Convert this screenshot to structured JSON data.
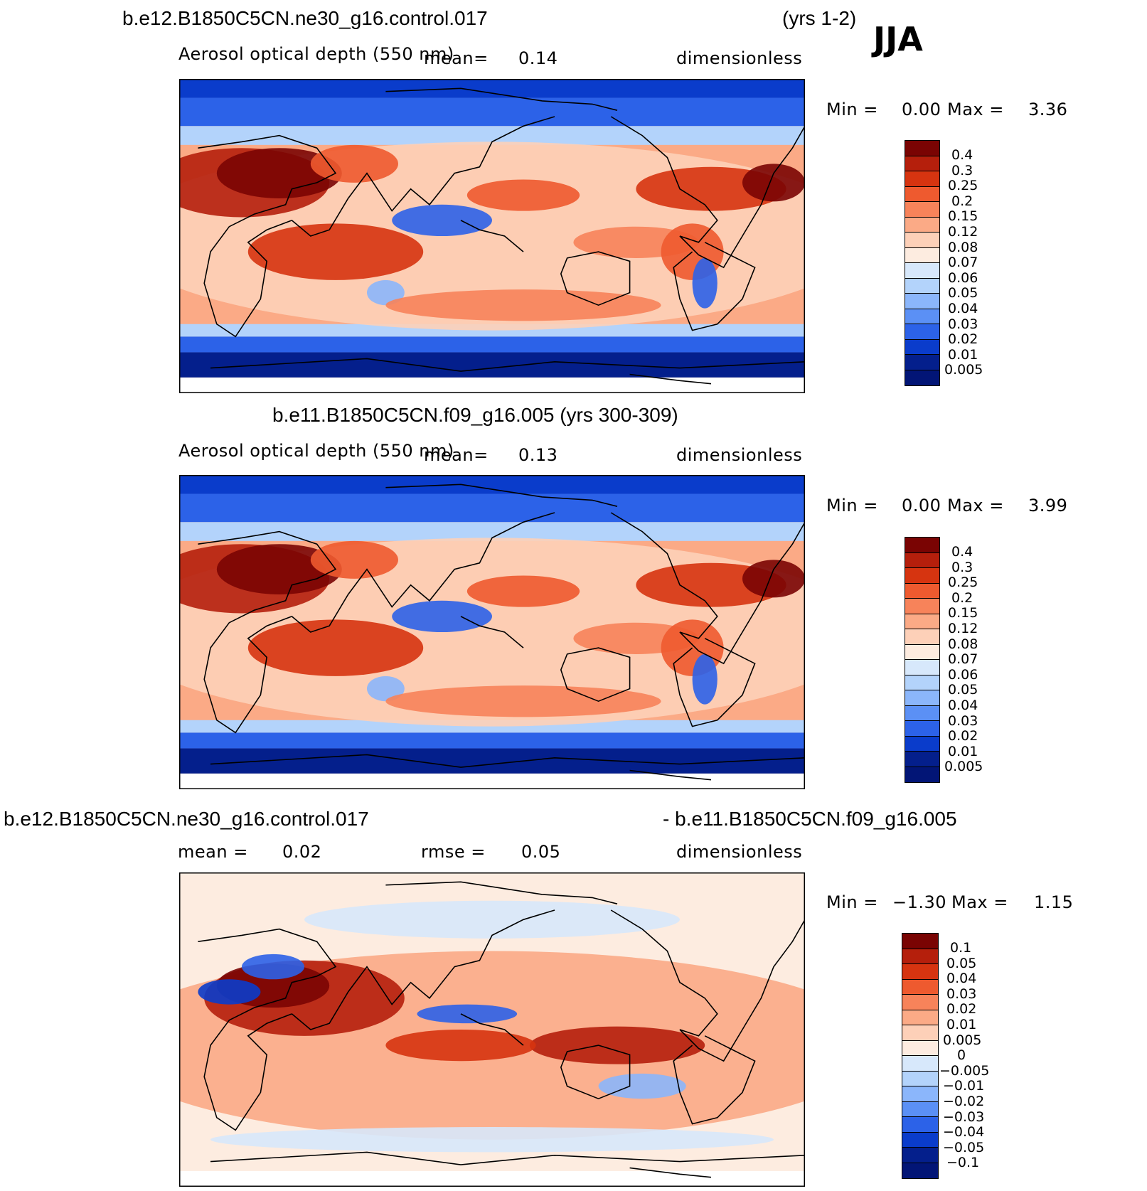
{
  "season": "JJA",
  "panel1": {
    "case_title": "b.e12.B1850C5CN.ne30_g16.control.017",
    "years": "(yrs 1-2)",
    "variable": "Aerosol optical depth (550 nm)",
    "mean_label": "mean=",
    "mean_value": "0.14",
    "units": "dimensionless",
    "min_label": "Min =",
    "min_value": "0.00",
    "max_label": "Max =",
    "max_value": "3.36"
  },
  "panel2": {
    "case_title": "b.e11.B1850C5CN.f09_g16.005 (yrs 300-309)",
    "variable": "Aerosol optical depth (550 nm)",
    "mean_label": "mean=",
    "mean_value": "0.13",
    "units": "dimensionless",
    "min_label": "Min =",
    "min_value": "0.00",
    "max_label": "Max =",
    "max_value": "3.99"
  },
  "panel3": {
    "case_title_left": "b.e12.B1850C5CN.ne30_g16.control.017",
    "case_title_right": "- b.e11.B1850C5CN.f09_g16.005",
    "mean_label": "mean =",
    "mean_value": "0.02",
    "rmse_label": "rmse =",
    "rmse_value": "0.05",
    "units": "dimensionless",
    "min_label": "Min =",
    "min_value": "−1.30",
    "max_label": "Max =",
    "max_value": "1.15"
  },
  "chart_data": [
    {
      "type": "heatmap",
      "title": "b.e12.B1850C5CN.ne30_g16.control.017 (yrs 1-2)",
      "subtitle": "Aerosol optical depth (550 nm)",
      "season": "JJA",
      "mean": 0.14,
      "min": 0.0,
      "max": 3.36,
      "units": "dimensionless",
      "legend_levels": [
        "0.4",
        "0.3",
        "0.25",
        "0.2",
        "0.15",
        "0.12",
        "0.08",
        "0.07",
        "0.06",
        "0.05",
        "0.04",
        "0.03",
        "0.02",
        "0.01",
        "0.005"
      ],
      "legend_colors": [
        "#7a0403",
        "#b51f0c",
        "#d63410",
        "#ee5a2f",
        "#f7835a",
        "#fbaa86",
        "#fdd0b8",
        "#fdece0",
        "#d7e8fb",
        "#b3d3fb",
        "#8bb6fb",
        "#5b90f5",
        "#2c62e8",
        "#0a3ccb",
        "#041f8c",
        "#021576"
      ]
    },
    {
      "type": "heatmap",
      "title": "b.e11.B1850C5CN.f09_g16.005 (yrs 300-309)",
      "subtitle": "Aerosol optical depth (550 nm)",
      "season": "JJA",
      "mean": 0.13,
      "min": 0.0,
      "max": 3.99,
      "units": "dimensionless",
      "legend_levels": [
        "0.4",
        "0.3",
        "0.25",
        "0.2",
        "0.15",
        "0.12",
        "0.08",
        "0.07",
        "0.06",
        "0.05",
        "0.04",
        "0.03",
        "0.02",
        "0.01",
        "0.005"
      ],
      "legend_colors": [
        "#7a0403",
        "#b51f0c",
        "#d63410",
        "#ee5a2f",
        "#f7835a",
        "#fbaa86",
        "#fdd0b8",
        "#fdece0",
        "#d7e8fb",
        "#b3d3fb",
        "#8bb6fb",
        "#5b90f5",
        "#2c62e8",
        "#0a3ccb",
        "#041f8c",
        "#021576"
      ]
    },
    {
      "type": "heatmap",
      "title": "b.e12.B1850C5CN.ne30_g16.control.017 - b.e11.B1850C5CN.f09_g16.005",
      "season": "JJA",
      "mean": 0.02,
      "rmse": 0.05,
      "min": -1.3,
      "max": 1.15,
      "units": "dimensionless",
      "legend_levels": [
        "0.1",
        "0.05",
        "0.04",
        "0.03",
        "0.02",
        "0.01",
        "0.005",
        "0",
        "−0.005",
        "−0.01",
        "−0.02",
        "−0.03",
        "−0.04",
        "−0.05",
        "−0.1"
      ],
      "legend_colors": [
        "#7a0403",
        "#b51f0c",
        "#d63410",
        "#ee5a2f",
        "#f7835a",
        "#fbaa86",
        "#fdd0b8",
        "#fdece0",
        "#d7e8fb",
        "#b3d3fb",
        "#8bb6fb",
        "#5b90f5",
        "#2c62e8",
        "#0a3ccb",
        "#041f8c",
        "#021576"
      ]
    }
  ]
}
